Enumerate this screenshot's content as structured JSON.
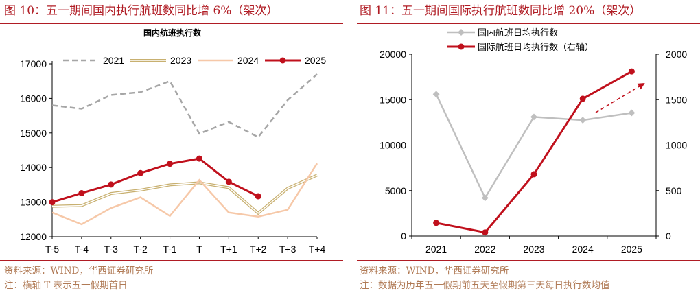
{
  "left": {
    "title": "图 10：五一期间国内执行航班数同比增 6%（架次）",
    "source": "资料来源：WIND，华西证券研究所",
    "note": "注：横轴 T 表示五一假期首日"
  },
  "right": {
    "title": "图 11：五一期间国际执行航班数同比增 20%（架次）",
    "source": "资料来源：WIND，华西证券研究所",
    "note": "注：数据为历年五一假期前五天至假期第三天每日执行数均值"
  },
  "chart_data": [
    {
      "type": "line",
      "title": "国内航班执行数",
      "categories": [
        "T-5",
        "T-4",
        "T-3",
        "T-2",
        "T-1",
        "T",
        "T+1",
        "T+2",
        "T+3",
        "T+4"
      ],
      "ylim": [
        12000,
        17000
      ],
      "yticks": [
        12000,
        13000,
        14000,
        15000,
        16000,
        17000
      ],
      "legend_position": "top",
      "grid": false,
      "series": [
        {
          "name": "2021",
          "color": "#a6a6a6",
          "style": "dashed",
          "values": [
            15800,
            15700,
            16100,
            16180,
            16500,
            14980,
            15320,
            14880,
            15950,
            16700
          ]
        },
        {
          "name": "2023",
          "color": "#c8b070",
          "style": "double",
          "values": [
            12880,
            12900,
            13250,
            13350,
            13500,
            13560,
            13420,
            12680,
            13400,
            13780
          ]
        },
        {
          "name": "2024",
          "color": "#f6c8a8",
          "style": "solid",
          "values": [
            12700,
            12360,
            12830,
            13140,
            12600,
            13640,
            12700,
            12580,
            12780,
            14120
          ]
        },
        {
          "name": "2025",
          "color": "#c0101c",
          "style": "marker",
          "values": [
            13000,
            13260,
            13510,
            13840,
            14110,
            14260,
            13590,
            13170,
            null,
            null
          ]
        }
      ]
    },
    {
      "type": "line",
      "title": "",
      "categories": [
        "2021",
        "2022",
        "2023",
        "2024",
        "2025"
      ],
      "ylim": [
        0,
        20000
      ],
      "yticks": [
        0,
        5000,
        10000,
        15000,
        20000
      ],
      "y2lim": [
        0,
        2000
      ],
      "y2ticks": [
        0,
        500,
        1000,
        1500,
        2000
      ],
      "legend_position": "top-left",
      "grid": false,
      "series": [
        {
          "name": "国内航班日均执行数",
          "axis": "left",
          "color": "#bfbfbf",
          "values": [
            15600,
            4200,
            13100,
            12750,
            13550
          ]
        },
        {
          "name": "国际航班日均执行数（右轴）",
          "axis": "right",
          "color": "#c0101c",
          "values": [
            145,
            40,
            680,
            1510,
            1810
          ]
        }
      ]
    }
  ]
}
